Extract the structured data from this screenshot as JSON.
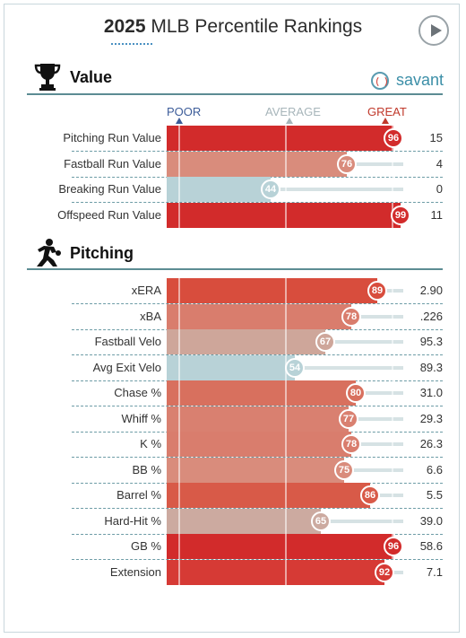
{
  "header": {
    "year": "2025",
    "title_rest": " MLB Percentile Rankings"
  },
  "sections": {
    "value": {
      "label": "Value",
      "brand": "savant"
    },
    "pitching": {
      "label": "Pitching"
    }
  },
  "scale": {
    "poor": "POOR",
    "average": "AVERAGE",
    "great": "GREAT"
  },
  "value_rows": [
    {
      "name": "Pitching Run Value",
      "percentile": 96,
      "value": "15",
      "color": "#d22b2b"
    },
    {
      "name": "Fastball Run Value",
      "percentile": 76,
      "value": "4",
      "color": "#d98c7c"
    },
    {
      "name": "Breaking Run Value",
      "percentile": 44,
      "value": "0",
      "color": "#b8d2d7"
    },
    {
      "name": "Offspeed Run Value",
      "percentile": 99,
      "value": "11",
      "color": "#d22b2b"
    }
  ],
  "pitching_rows": [
    {
      "name": "xERA",
      "percentile": 89,
      "value": "2.90",
      "color": "#d84d3d"
    },
    {
      "name": "xBA",
      "percentile": 78,
      "value": ".226",
      "color": "#d97d6d"
    },
    {
      "name": "Fastball Velo",
      "percentile": 67,
      "value": "95.3",
      "color": "#cea69a"
    },
    {
      "name": "Avg Exit Velo",
      "percentile": 54,
      "value": "89.3",
      "color": "#b8d2d7"
    },
    {
      "name": "Chase %",
      "percentile": 80,
      "value": "31.0",
      "color": "#d8705e"
    },
    {
      "name": "Whiff %",
      "percentile": 77,
      "value": "29.3",
      "color": "#d98070"
    },
    {
      "name": "K %",
      "percentile": 78,
      "value": "26.3",
      "color": "#d97d6d"
    },
    {
      "name": "BB %",
      "percentile": 75,
      "value": "6.6",
      "color": "#d98c7c"
    },
    {
      "name": "Barrel %",
      "percentile": 86,
      "value": "5.5",
      "color": "#d85a48"
    },
    {
      "name": "Hard-Hit %",
      "percentile": 65,
      "value": "39.0",
      "color": "#ccaaa0"
    },
    {
      "name": "GB %",
      "percentile": 96,
      "value": "58.6",
      "color": "#d22b2b"
    },
    {
      "name": "Extension",
      "percentile": 92,
      "value": "7.1",
      "color": "#d63a35"
    }
  ]
}
